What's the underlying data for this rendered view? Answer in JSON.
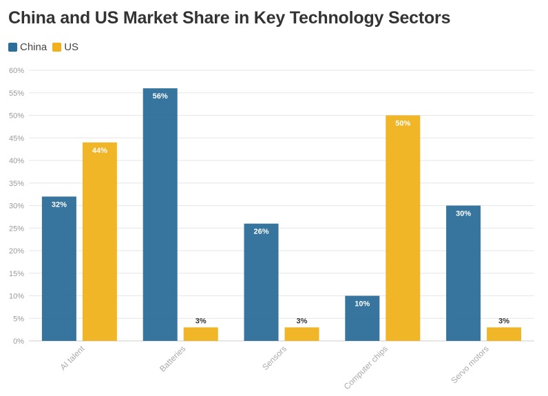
{
  "chart_data": {
    "type": "bar",
    "title": "China and US Market Share in Key Technology Sectors",
    "xlabel": "",
    "ylabel": "",
    "categories": [
      "AI talent",
      "Batteries",
      "Sensors",
      "Computer chips",
      "Servo motors"
    ],
    "series": [
      {
        "name": "China",
        "color": "#2c6e9a",
        "values": [
          32,
          56,
          26,
          10,
          30
        ]
      },
      {
        "name": "US",
        "color": "#f0b11c",
        "values": [
          44,
          3,
          3,
          50,
          3
        ]
      }
    ],
    "ylim": [
      0,
      60
    ],
    "yticks": [
      0,
      5,
      10,
      15,
      20,
      25,
      30,
      35,
      40,
      45,
      50,
      55,
      60
    ],
    "ytick_labels": [
      "0%",
      "5%",
      "10%",
      "15%",
      "20%",
      "25%",
      "30%",
      "35%",
      "40%",
      "45%",
      "50%",
      "55%",
      "60%"
    ],
    "data_labels": [
      [
        "32%",
        "56%",
        "26%",
        "10%",
        "30%"
      ],
      [
        "44%",
        "3%",
        "3%",
        "50%",
        "3%"
      ]
    ],
    "grid": true,
    "legend": "top-left"
  }
}
